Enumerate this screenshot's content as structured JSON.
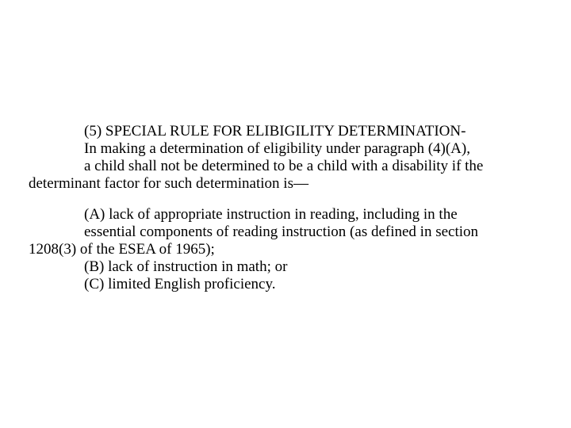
{
  "p1": {
    "l1a": "(5) SPECIAL RULE FOR ELIBIGILITY DETERMINATION-",
    "l2a": "In making a determination of eligibility under paragraph (4)(A),",
    "l3a": "a child shall not be determined to be a child with a disability if the",
    "l4": "determinant factor for such determination is—"
  },
  "p2": {
    "l1a": "(A) lack of appropriate instruction in reading, including in the",
    "l2a": "essential components of reading instruction (as defined in section",
    "l3": "1208(3) of the ESEA of 1965);",
    "l4a": "(B) lack of instruction in math; or",
    "l5a": "(C) limited English proficiency."
  }
}
